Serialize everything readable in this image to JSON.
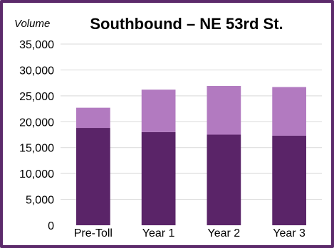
{
  "chart_data": {
    "type": "bar",
    "stacked": true,
    "title": "Southbound – NE 53rd St.",
    "ylabel": "Volume",
    "xlabel": "",
    "categories": [
      "Pre-Toll",
      "Year 1",
      "Year 2",
      "Year 3"
    ],
    "series": [
      {
        "values": [
          18800,
          18000,
          17500,
          17300
        ],
        "color": "#5a2468"
      },
      {
        "values": [
          3900,
          8200,
          9400,
          9400
        ],
        "color": "#b27ac0"
      }
    ],
    "ylim": [
      0,
      35000
    ],
    "yticks": [
      0,
      5000,
      10000,
      15000,
      20000,
      25000,
      30000,
      35000
    ],
    "ytick_labels": [
      "0",
      "5,000",
      "10,000",
      "15,000",
      "20,000",
      "25,000",
      "30,000",
      "35,000"
    ],
    "grid": true,
    "colors": {
      "frame": "#5c2a6b",
      "grid": "#d9d9d9",
      "text": "#000000"
    }
  }
}
